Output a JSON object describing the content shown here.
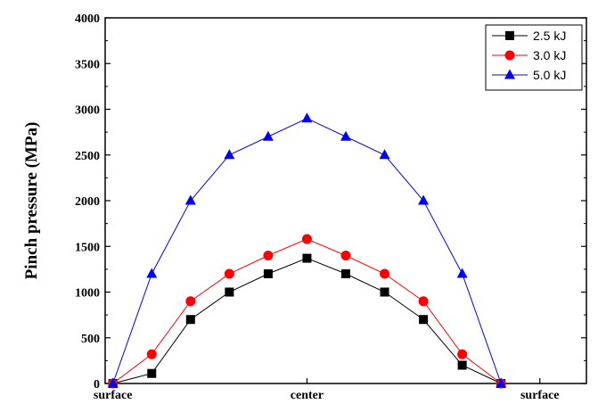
{
  "chart_data": {
    "type": "line",
    "ylabel": "Pinch pressure (MPa)",
    "xlabel": "",
    "ylim": [
      0,
      4000
    ],
    "yticks": [
      0,
      500,
      1000,
      1500,
      2000,
      2500,
      3000,
      3500,
      4000
    ],
    "xlim": [
      -0.2,
      12.2
    ],
    "x": [
      0,
      1,
      2,
      3,
      4,
      5,
      6,
      7,
      8,
      9,
      10,
      11
    ],
    "x_tick_labels": [
      {
        "x": 0,
        "label": "surface"
      },
      {
        "x": 5,
        "label": "center"
      },
      {
        "x": 11,
        "label": "surface"
      }
    ],
    "legend_position": "top-right",
    "series": [
      {
        "name": "2.5 kJ",
        "color": "#000000",
        "marker": "square",
        "values": [
          0,
          110,
          700,
          1000,
          1200,
          1370,
          1200,
          1000,
          700,
          200,
          0,
          null
        ]
      },
      {
        "name": "3.0 kJ",
        "color": "#ff0000",
        "marker": "circle",
        "values": [
          0,
          320,
          900,
          1200,
          1400,
          1580,
          1400,
          1200,
          900,
          320,
          0,
          null
        ]
      },
      {
        "name": "5.0 kJ",
        "color": "#0000ff",
        "marker": "triangle",
        "values": [
          0,
          1200,
          2000,
          2500,
          2700,
          2900,
          2700,
          2500,
          2000,
          1200,
          0,
          null
        ]
      }
    ]
  }
}
